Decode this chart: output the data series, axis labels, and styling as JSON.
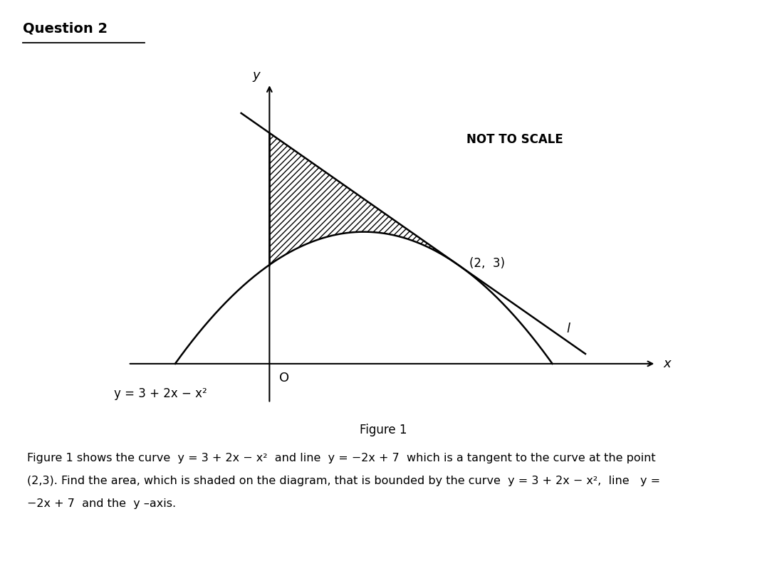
{
  "title": "Question 2",
  "figure_label": "Figure 1",
  "not_to_scale": "NOT TO SCALE",
  "curve_label": "y = 3 + 2x − x²",
  "tangent_label": "l",
  "point_label": "(2,  3)",
  "origin_label": "O",
  "x_label": "x",
  "y_label": "y",
  "body_text_line1": "Figure 1 shows the curve  y = 3 + 2x − x²  and line  y = −2x + 7  which is a tangent to the curve at the point",
  "body_text_line2": "(2,3). Find the area, which is shaded on the diagram, that is bounded by the curve  y = 3 + 2x − x²,  line   y =",
  "body_text_line3": "−2x + 7  and the  y –axis.",
  "bg_color": "#ffffff",
  "line_color": "#000000",
  "hatch_color": "#000000",
  "xlim": [
    -1.8,
    4.3
  ],
  "ylim": [
    -1.5,
    8.8
  ]
}
